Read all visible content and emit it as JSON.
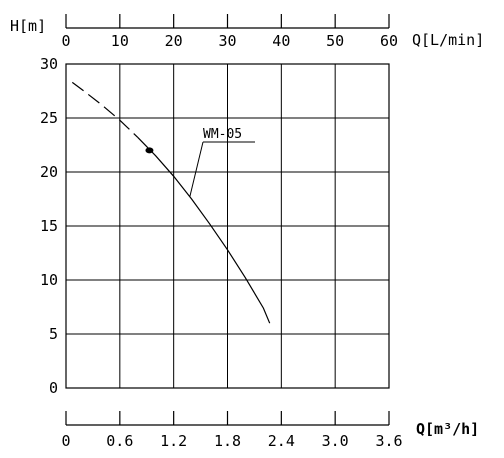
{
  "chart_data": {
    "type": "line",
    "ylabel": "H[m]",
    "xlabel_top": "Q[L/min]",
    "xlabel_bottom": "Q[m³/h]",
    "ylim": [
      0,
      30
    ],
    "xlim_lpm": [
      0,
      60
    ],
    "xlim_m3h": [
      0,
      3.6
    ],
    "y_ticks": [
      "0",
      "5",
      "10",
      "15",
      "20",
      "25",
      "30"
    ],
    "x_ticks_top": [
      "0",
      "10",
      "20",
      "30",
      "40",
      "50",
      "60"
    ],
    "x_ticks_bottom": [
      "0",
      "0.6",
      "1.2",
      "1.8",
      "2.4",
      "3.0",
      "3.6"
    ],
    "grid": true,
    "series": [
      {
        "name": "WM-05",
        "x_m3h": [
          0.07,
          0.2,
          0.4,
          0.6,
          0.8,
          1.0,
          1.2,
          1.4,
          1.6,
          1.8,
          2.0,
          2.2,
          2.27
        ],
        "y_m": [
          28.3,
          27.5,
          26.2,
          24.8,
          23.2,
          21.5,
          19.6,
          17.5,
          15.2,
          12.8,
          10.2,
          7.4,
          6.0
        ],
        "dashed_until_x_m3h": 0.9,
        "marker": {
          "x_m3h": 0.93,
          "y_m": 22.0
        }
      }
    ]
  }
}
